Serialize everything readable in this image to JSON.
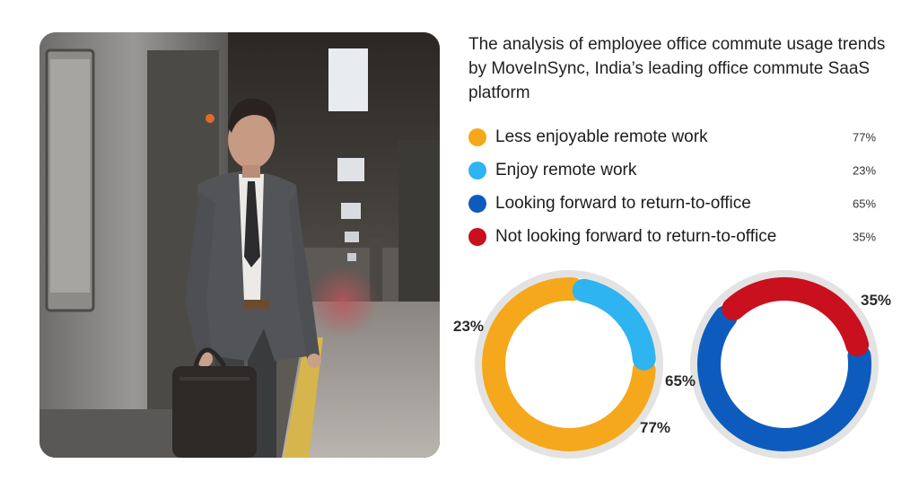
{
  "title": "The analysis of employee office commute usage trends  by MoveInSync, India’s leading office commute SaaS platform",
  "chart_data": [
    {
      "type": "pie",
      "style": "donut",
      "categories": [
        "Less enjoyable remote work",
        "Enjoy remote work"
      ],
      "values": [
        77,
        23
      ],
      "labels": [
        "77%",
        "23%"
      ],
      "colors": [
        "#f5a81c",
        "#2db4f1"
      ]
    },
    {
      "type": "pie",
      "style": "donut",
      "categories": [
        "Looking forward to return-to-office",
        "Not looking forward to return-to-office"
      ],
      "values": [
        65,
        35
      ],
      "labels": [
        "65%",
        "35%"
      ],
      "colors": [
        "#0d5cbd",
        "#c8101e"
      ]
    }
  ],
  "legend": [
    {
      "label": "Less enjoyable remote work",
      "value": "77%",
      "color": "#f5a81c"
    },
    {
      "label": "Enjoy remote work",
      "value": "23%",
      "color": "#2db4f1"
    },
    {
      "label": "Looking forward to return-to-office",
      "value": "65%",
      "color": "#0d5cbd"
    },
    {
      "label": "Not looking forward to return-to-office",
      "value": "35%",
      "color": "#c8101e"
    }
  ],
  "photo": {
    "subject": "businessman-with-bag-exiting-subway-train"
  }
}
